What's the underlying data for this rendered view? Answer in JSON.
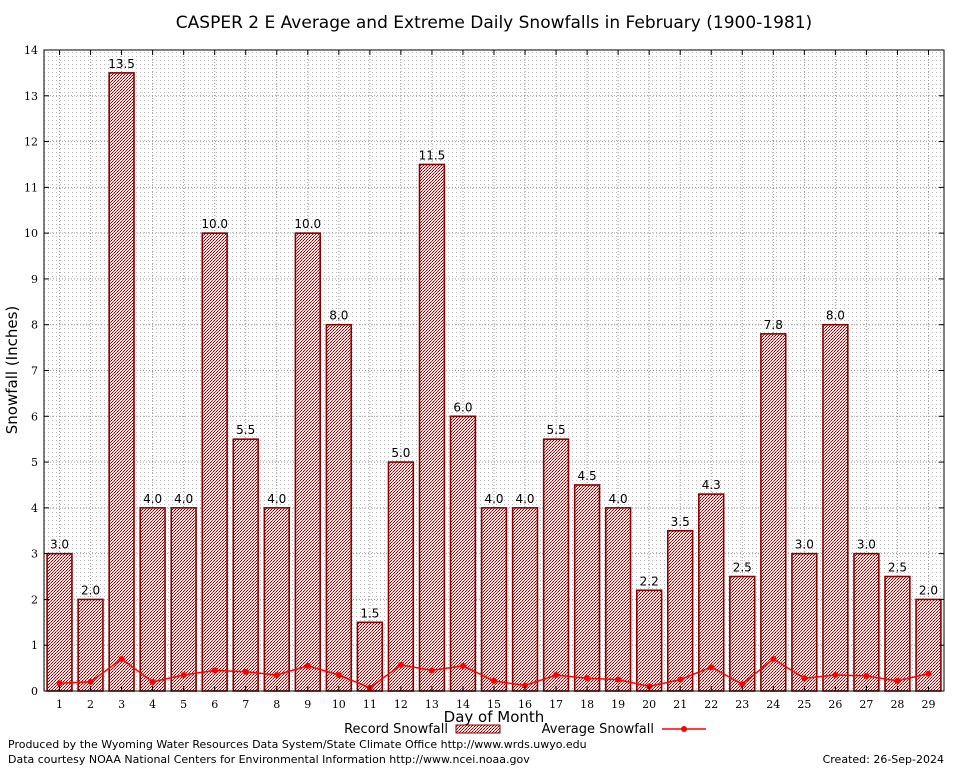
{
  "chart_data": {
    "type": "bar",
    "title": "CASPER 2 E Average and Extreme Daily Snowfalls in February (1900-1981)",
    "xlabel": "Day of Month",
    "ylabel": "Snowfall (Inches)",
    "ylim": [
      0,
      14
    ],
    "yticks": [
      0,
      1,
      2,
      3,
      4,
      5,
      6,
      7,
      8,
      9,
      10,
      11,
      12,
      13,
      14
    ],
    "grid": true,
    "legend_position": "bottom-center",
    "categories": [
      "1",
      "2",
      "3",
      "4",
      "5",
      "6",
      "7",
      "8",
      "9",
      "10",
      "11",
      "12",
      "13",
      "14",
      "15",
      "16",
      "17",
      "18",
      "19",
      "20",
      "21",
      "22",
      "23",
      "24",
      "25",
      "26",
      "27",
      "28",
      "29"
    ],
    "series": [
      {
        "name": "Record Snowfall",
        "type": "bar",
        "color": "#8b0000",
        "values": [
          3.0,
          2.0,
          13.5,
          4.0,
          4.0,
          10.0,
          5.5,
          4.0,
          10.0,
          8.0,
          1.5,
          5.0,
          11.5,
          6.0,
          4.0,
          4.0,
          5.5,
          4.5,
          4.0,
          2.2,
          3.5,
          4.3,
          2.5,
          7.8,
          3.0,
          8.0,
          3.0,
          2.5,
          2.0
        ],
        "labels": [
          "3.0",
          "2.0",
          "13.5",
          "4.0",
          "4.0",
          "10.0",
          "5.5",
          "4.0",
          "10.0",
          "8.0",
          "1.5",
          "5.0",
          "11.5",
          "6.0",
          "4.0",
          "4.0",
          "5.5",
          "4.5",
          "4.0",
          "2.2",
          "3.5",
          "4.3",
          "2.5",
          "7.8",
          "3.0",
          "8.0",
          "3.0",
          "2.5",
          "2.0"
        ]
      },
      {
        "name": "Average Snowfall",
        "type": "line",
        "color": "#ff0000",
        "values": [
          0.17,
          0.2,
          0.7,
          0.2,
          0.35,
          0.45,
          0.42,
          0.35,
          0.55,
          0.35,
          0.07,
          0.57,
          0.45,
          0.55,
          0.22,
          0.12,
          0.35,
          0.28,
          0.25,
          0.1,
          0.25,
          0.52,
          0.15,
          0.7,
          0.28,
          0.35,
          0.33,
          0.22,
          0.38
        ]
      }
    ]
  },
  "footer": {
    "produced_by": "Produced by the Wyoming Water Resources Data System/State Climate Office http://www.wrds.uwyo.edu",
    "courtesy": "Data courtesy NOAA National Centers for Environmental Information http://www.ncei.noaa.gov",
    "created": "Created:  26-Sep-2024"
  }
}
